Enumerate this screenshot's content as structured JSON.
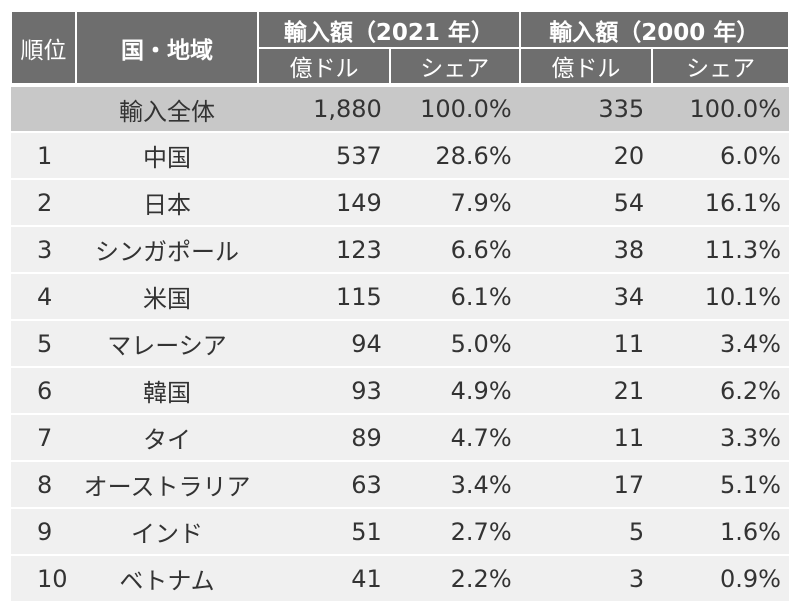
{
  "header": {
    "rank": "順位",
    "country": "国・地域",
    "group2021": "輸入額（2021 年）",
    "group2000": "輸入額（2000 年）",
    "unit": "億ドル",
    "share": "シェア"
  },
  "total": {
    "label": "輸入全体",
    "v2021": "1,880",
    "s2021": "100.0%",
    "v2000": "335",
    "s2000": "100.0%"
  },
  "rows": [
    {
      "rank": "1",
      "name": "中国",
      "v2021": "537",
      "s2021": "28.6%",
      "v2000": "20",
      "s2000": "6.0%"
    },
    {
      "rank": "2",
      "name": "日本",
      "v2021": "149",
      "s2021": "7.9%",
      "v2000": "54",
      "s2000": "16.1%"
    },
    {
      "rank": "3",
      "name": "シンガポール",
      "v2021": "123",
      "s2021": "6.6%",
      "v2000": "38",
      "s2000": "11.3%"
    },
    {
      "rank": "4",
      "name": "米国",
      "v2021": "115",
      "s2021": "6.1%",
      "v2000": "34",
      "s2000": "10.1%"
    },
    {
      "rank": "5",
      "name": "マレーシア",
      "v2021": "94",
      "s2021": "5.0%",
      "v2000": "11",
      "s2000": "3.4%"
    },
    {
      "rank": "6",
      "name": "韓国",
      "v2021": "93",
      "s2021": "4.9%",
      "v2000": "21",
      "s2000": "6.2%"
    },
    {
      "rank": "7",
      "name": "タイ",
      "v2021": "89",
      "s2021": "4.7%",
      "v2000": "11",
      "s2000": "3.3%"
    },
    {
      "rank": "8",
      "name": "オーストラリア",
      "v2021": "63",
      "s2021": "3.4%",
      "v2000": "17",
      "s2000": "5.1%"
    },
    {
      "rank": "9",
      "name": "インド",
      "v2021": "51",
      "s2021": "2.7%",
      "v2000": "5",
      "s2000": "1.6%"
    },
    {
      "rank": "10",
      "name": "ベトナム",
      "v2021": "41",
      "s2021": "2.2%",
      "v2000": "3",
      "s2000": "0.9%"
    }
  ]
}
